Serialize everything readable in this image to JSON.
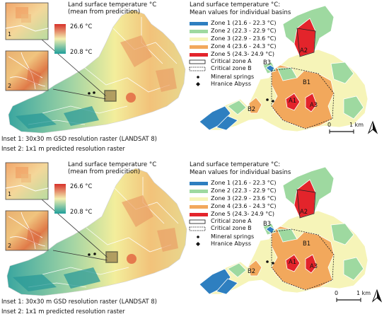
{
  "panels": [
    {
      "id": "top",
      "left": {
        "colorbar_title_line1": "Land surface temperature °C",
        "colorbar_title_line2": "(mean from predicition)",
        "colorbar_max": "26.6 °C",
        "colorbar_min": "20.8 °C",
        "inset1_number": "1",
        "inset2_number": "2",
        "caption1": "Inset 1: 30x30 m GSD resolution raster (LANDSAT 8)",
        "caption2": "Inset 2: 1x1 m predicted resolution raster"
      },
      "right": {
        "legend_title_line1": "Land surface temperature °C:",
        "legend_title_line2": "Mean values for individual basins",
        "zones": [
          {
            "label": "Zone 1 (21.6 - 22.3 °C)",
            "color": "#2e7fc0"
          },
          {
            "label": "Zone 2 (22.3 - 22.9 °C)",
            "color": "#9ed9a0"
          },
          {
            "label": "Zone 3 (22.9 - 23.6 °C)",
            "color": "#f6f4b8"
          },
          {
            "label": "Zone 4 (23.6 - 24.3 °C)",
            "color": "#f2a85c"
          },
          {
            "label": "Zone 5 (24.3- 24.9 °C)",
            "color": "#e3242b"
          }
        ],
        "critical_a": "Critical zone A",
        "critical_b": "Critical zone B",
        "springs": "Mineral springs",
        "abyss": "Hranice Abyss",
        "basins": {
          "a1": "A1",
          "a2": "A2",
          "a3": "A3",
          "b1": "B1",
          "b2": "B2",
          "b3": "B3"
        },
        "scale_zero": "0",
        "scale_km": "1 km"
      }
    },
    {
      "id": "bottom",
      "left": {
        "colorbar_title_line1": "Land surface temperature °C",
        "colorbar_title_line2": "(mean from predicition)",
        "colorbar_max": "26.6 °C",
        "colorbar_min": "20.8 °C",
        "inset1_number": "1",
        "inset2_number": "2",
        "caption1": "Inset 1: 30x30 m GSD resolution raster (LANDSAT 8)",
        "caption2": "Inset 2: 1x1 m predicted resolution raster"
      },
      "right": {
        "legend_title_line1": "Land surface temperature °C:",
        "legend_title_line2": "Mean values for individual basins",
        "zones": [
          {
            "label": "Zone 1 (21.6 - 22.3 °C)",
            "color": "#2e7fc0"
          },
          {
            "label": "Zone 2 (22.3 - 22.9 °C)",
            "color": "#9ed9a0"
          },
          {
            "label": "Zone 3 (22.9 - 23.6 °C)",
            "color": "#f6f4b8"
          },
          {
            "label": "Zone 4 (23.6 - 24.3 °C)",
            "color": "#f2a85c"
          },
          {
            "label": "Zone 5 (24.3- 24.9 °C)",
            "color": "#e3242b"
          }
        ],
        "critical_a": "Critical zone A",
        "critical_b": "Critical zone B",
        "springs": "Mineral springs",
        "abyss": "Hranice Abyss",
        "basins": {
          "a1": "A1",
          "a2": "A2",
          "a3": "A3",
          "b1": "B1",
          "b2": "B2",
          "b3": "B3"
        },
        "scale_zero": "0",
        "scale_km": "1 km"
      }
    }
  ],
  "colors": {
    "lst_high": "#d7302a",
    "lst_mid": "#f3f0b0",
    "lst_low": "#1f9e9a",
    "basin_border": "#ffffff"
  }
}
